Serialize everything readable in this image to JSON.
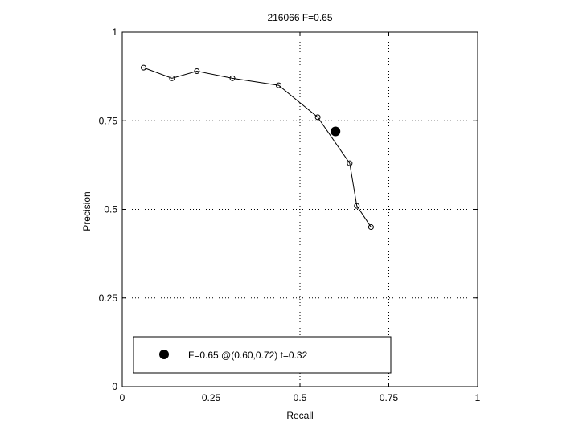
{
  "chart_data": {
    "type": "line",
    "title": "216066 F=0.65",
    "xlabel": "Recall",
    "ylabel": "Precision",
    "xlim": [
      0,
      1
    ],
    "ylim": [
      0,
      1
    ],
    "xticks": [
      0,
      0.25,
      0.5,
      0.75,
      1
    ],
    "yticks": [
      0,
      0.25,
      0.5,
      0.75,
      1
    ],
    "xtick_labels": [
      "0",
      "0.25",
      "0.5",
      "0.75",
      "1"
    ],
    "ytick_labels": [
      "0",
      "0.25",
      "0.5",
      "0.75",
      "1"
    ],
    "grid": true,
    "series": [
      {
        "marker": "open-circle",
        "color": "#000000",
        "x": [
          0.06,
          0.14,
          0.21,
          0.31,
          0.44,
          0.55,
          0.64,
          0.66,
          0.7
        ],
        "y": [
          0.9,
          0.87,
          0.89,
          0.87,
          0.85,
          0.76,
          0.63,
          0.51,
          0.45
        ]
      }
    ],
    "best_point": {
      "x": 0.6,
      "y": 0.72,
      "marker": "filled-circle",
      "color": "#000000"
    },
    "legend": {
      "placement": "bottom-left",
      "entries": [
        {
          "label": "F=0.65 @(0.60,0.72) t=0.32",
          "marker": "filled-circle"
        }
      ]
    }
  }
}
